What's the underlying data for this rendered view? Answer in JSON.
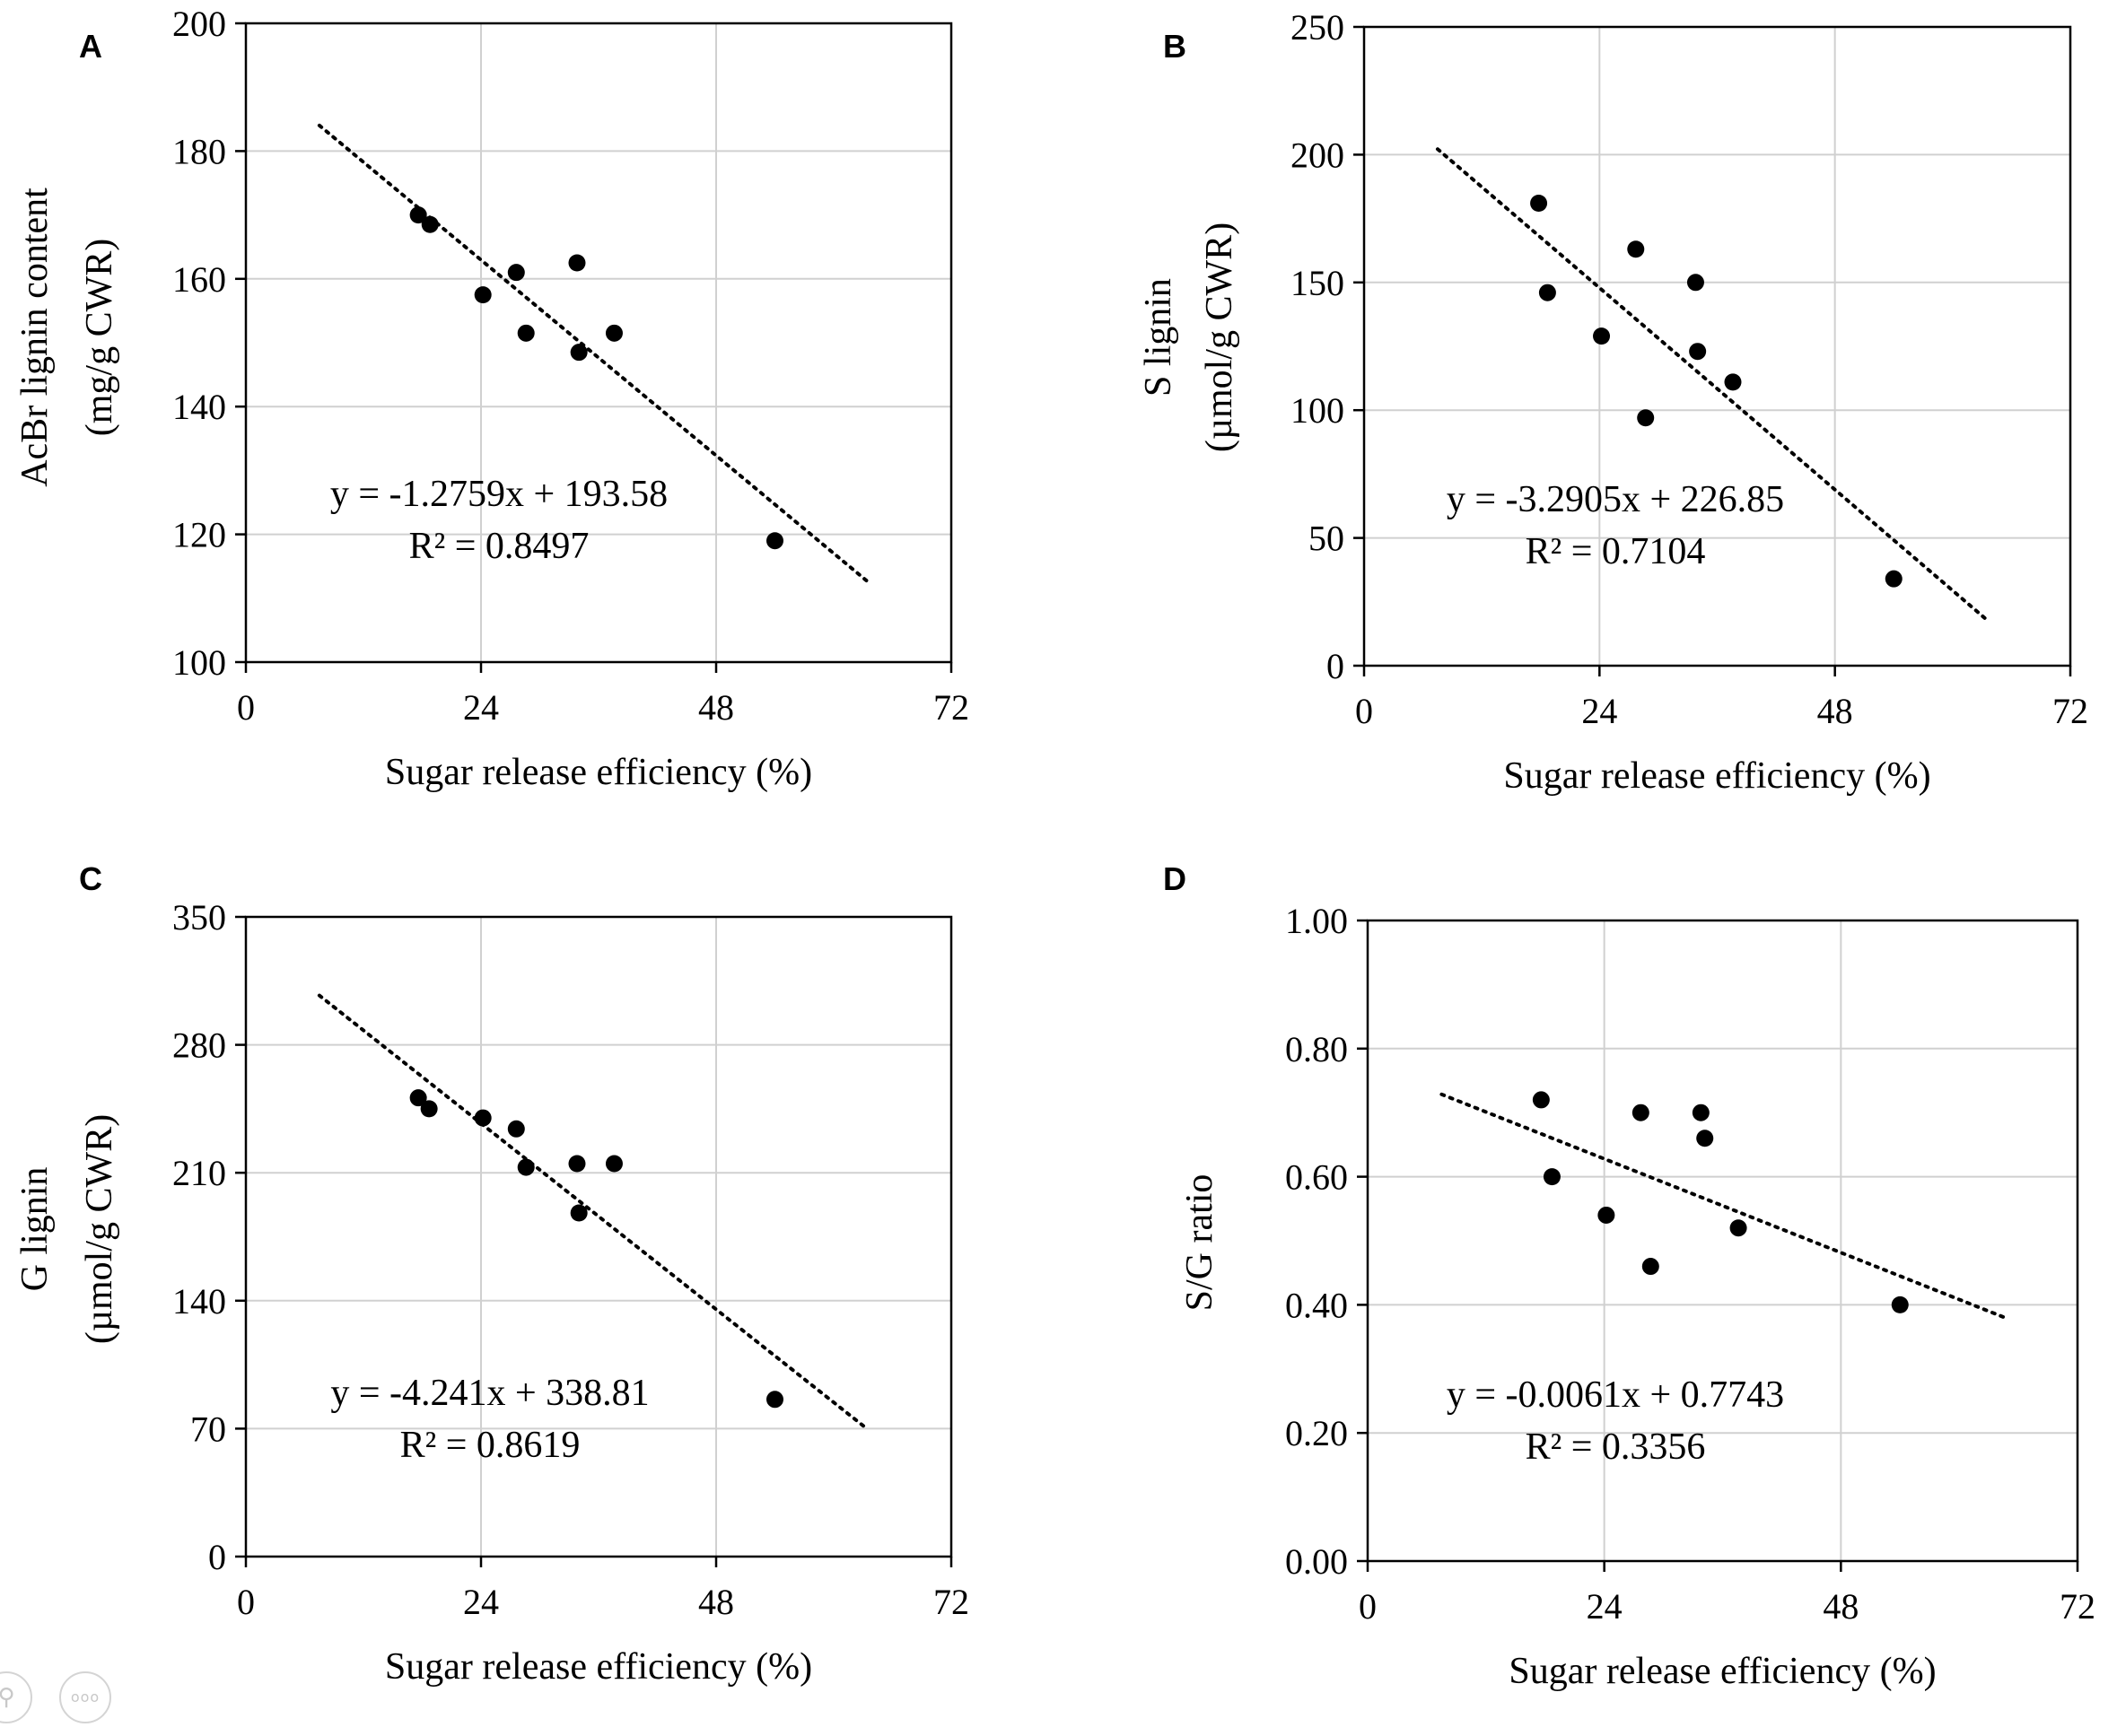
{
  "viewer": {
    "zoom_icon": "magnifier-icon",
    "more_icon": "more-icon",
    "more_label": "ooo"
  },
  "chart_data": [
    {
      "type": "scatter",
      "panel_label": "A",
      "xlabel": "Sugar release efficiency (%)",
      "ylabel_line1": "AcBr lignin content",
      "ylabel_line2": "(mg/g CWR)",
      "xlim": [
        0,
        72
      ],
      "ylim": [
        100,
        200
      ],
      "xticks": [
        0,
        24,
        48,
        72
      ],
      "yticks": [
        100,
        120,
        140,
        160,
        180,
        200
      ],
      "x_tick_labels": [
        "0",
        "24",
        "48",
        "72"
      ],
      "y_tick_labels": [
        "100",
        "120",
        "140",
        "160",
        "180",
        "200"
      ],
      "points": [
        [
          17.6,
          170
        ],
        [
          18.8,
          168.5
        ],
        [
          24.2,
          157.5
        ],
        [
          27.6,
          161
        ],
        [
          28.6,
          151.5
        ],
        [
          33.8,
          162.5
        ],
        [
          34.0,
          148.5
        ],
        [
          37.6,
          151.5
        ],
        [
          54.0,
          119
        ]
      ],
      "trendline": {
        "slope": -1.2759,
        "intercept": 193.58,
        "x_start": 7.5,
        "x_end": 63.5
      },
      "equation": "y = -1.2759x + 193.58",
      "r_squared": "R² = 0.8497"
    },
    {
      "type": "scatter",
      "panel_label": "B",
      "xlabel": "Sugar release efficiency (%)",
      "ylabel_line1": "S lignin",
      "ylabel_line2": "(µmol/g CWR)",
      "xlim": [
        0,
        72
      ],
      "ylim": [
        0,
        250
      ],
      "xticks": [
        0,
        24,
        48,
        72
      ],
      "yticks": [
        0,
        50,
        100,
        150,
        200,
        250
      ],
      "x_tick_labels": [
        "0",
        "24",
        "48",
        "72"
      ],
      "y_tick_labels": [
        "0",
        "50",
        "100",
        "150",
        "200",
        "250"
      ],
      "points": [
        [
          17.8,
          181
        ],
        [
          18.7,
          146
        ],
        [
          24.2,
          129
        ],
        [
          27.7,
          163
        ],
        [
          28.7,
          97
        ],
        [
          33.8,
          150
        ],
        [
          34.0,
          123
        ],
        [
          37.6,
          111
        ],
        [
          54.0,
          34
        ]
      ],
      "trendline": {
        "slope": -3.2905,
        "intercept": 226.85,
        "x_start": 7.5,
        "x_end": 63.5
      },
      "equation": "y = -3.2905x + 226.85",
      "r_squared": "R² = 0.7104"
    },
    {
      "type": "scatter",
      "panel_label": "C",
      "xlabel": "Sugar release efficiency (%)",
      "ylabel_line1": "G lignin",
      "ylabel_line2": "(µmol/g CWR)",
      "xlim": [
        0,
        72
      ],
      "ylim": [
        0,
        350
      ],
      "xticks": [
        0,
        24,
        48,
        72
      ],
      "yticks": [
        0,
        70,
        140,
        210,
        280,
        350
      ],
      "x_tick_labels": [
        "0",
        "24",
        "48",
        "72"
      ],
      "y_tick_labels": [
        "0",
        "70",
        "140",
        "210",
        "280",
        "350"
      ],
      "points": [
        [
          17.6,
          251
        ],
        [
          18.7,
          245
        ],
        [
          24.2,
          240
        ],
        [
          27.6,
          234
        ],
        [
          28.6,
          213
        ],
        [
          33.8,
          215
        ],
        [
          34.0,
          188
        ],
        [
          37.6,
          215
        ],
        [
          54.0,
          86
        ]
      ],
      "trendline": {
        "slope": -4.241,
        "intercept": 338.81,
        "x_start": 7.5,
        "x_end": 63.5
      },
      "equation": "y = -4.241x + 338.81",
      "r_squared": "R² = 0.8619"
    },
    {
      "type": "scatter",
      "panel_label": "D",
      "xlabel": "Sugar release efficiency (%)",
      "ylabel_line1": "S/G ratio",
      "ylabel_line2": "",
      "xlim": [
        0,
        72
      ],
      "ylim": [
        0,
        1
      ],
      "xticks": [
        0,
        24,
        48,
        72
      ],
      "yticks": [
        0,
        0.2,
        0.4,
        0.6,
        0.8,
        1.0
      ],
      "x_tick_labels": [
        "0",
        "24",
        "48",
        "72"
      ],
      "y_tick_labels": [
        "0.00",
        "0.20",
        "0.40",
        "0.60",
        "0.80",
        "1.00"
      ],
      "points": [
        [
          17.6,
          0.72
        ],
        [
          18.7,
          0.6
        ],
        [
          24.2,
          0.54
        ],
        [
          27.7,
          0.7
        ],
        [
          28.7,
          0.46
        ],
        [
          33.8,
          0.7
        ],
        [
          34.2,
          0.66
        ],
        [
          37.6,
          0.52
        ],
        [
          54.0,
          0.4
        ]
      ],
      "trendline": {
        "slope": -0.0061,
        "intercept": 0.7743,
        "x_start": 7.5,
        "x_end": 64.5
      },
      "equation": "y = -0.0061x + 0.7743",
      "r_squared": "R² = 0.3356"
    }
  ]
}
